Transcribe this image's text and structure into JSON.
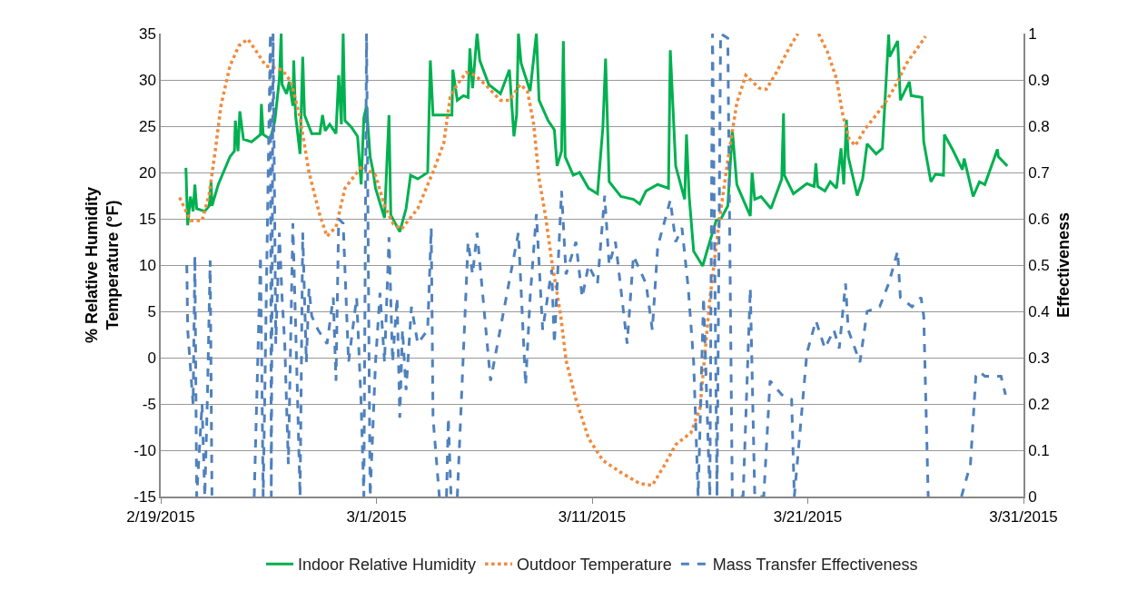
{
  "chart_data": {
    "type": "line",
    "ylabel": "% Relative Humidity\nTemperature (°F)",
    "y2label": "Effectiveness",
    "xlim": [
      "2015-02-19",
      "2015-03-31"
    ],
    "xticks": [
      {
        "value": "2015-02-19",
        "label": "2/19/2015"
      },
      {
        "value": "2015-03-01",
        "label": "3/1/2015"
      },
      {
        "value": "2015-03-11",
        "label": "3/11/2015"
      },
      {
        "value": "2015-03-21",
        "label": "3/21/2015"
      },
      {
        "value": "2015-03-31",
        "label": "3/31/2015"
      }
    ],
    "ylim": [
      -15,
      35
    ],
    "yticks": [
      -15,
      -10,
      -5,
      0,
      5,
      10,
      15,
      20,
      25,
      30,
      35
    ],
    "y2lim": [
      0,
      1
    ],
    "y2ticks": [
      0,
      0.1,
      0.2,
      0.3,
      0.4,
      0.5,
      0.6,
      0.7,
      0.8,
      0.9,
      1
    ],
    "grid": "y",
    "legend": "bottom",
    "series": [
      {
        "name": "Indoor Relative Humidity",
        "color": "#00b050",
        "line_style": "solid",
        "x": [
          "2015-02-20T04:00",
          "2015-02-20T06:00",
          "2015-02-20T09:00",
          "2015-02-20T12:00",
          "2015-02-20T14:00",
          "2015-02-20T16:00",
          "2015-02-21T01:00",
          "2015-02-21T06:00",
          "2015-02-21T08:00",
          "2015-02-21T09:00",
          "2015-02-21T16:00",
          "2015-02-22T05:00",
          "2015-02-22T10:00",
          "2015-02-22T11:00",
          "2015-02-22T14:00",
          "2015-02-22T16:00",
          "2015-02-22T20:00",
          "2015-02-23T05:00",
          "2015-02-23T15:00",
          "2015-02-23T16:00",
          "2015-02-23T18:00",
          "2015-02-24T02:00",
          "2015-02-24T07:00",
          "2015-02-24T12:00",
          "2015-02-24T14:00",
          "2015-02-24T15:00",
          "2015-02-24T20:00",
          "2015-02-24T23:00",
          "2015-02-25T03:00",
          "2015-02-25T04:00",
          "2015-02-25T06:00",
          "2015-02-25T11:00",
          "2015-02-25T14:00",
          "2015-02-25T16:00",
          "2015-02-26T00:00",
          "2015-02-26T09:00",
          "2015-02-26T12:00",
          "2015-02-26T15:00",
          "2015-02-26T20:00",
          "2015-02-27T03:00",
          "2015-02-27T06:00",
          "2015-02-27T09:00",
          "2015-02-27T11:00",
          "2015-02-27T13:00",
          "2015-02-27T20:00",
          "2015-02-28T03:00",
          "2015-02-28T07:00",
          "2015-02-28T10:00",
          "2015-02-28T13:00",
          "2015-02-28T17:00",
          "2015-02-28T20:00",
          "2015-02-28T23:00",
          "2015-03-01T09:00",
          "2015-03-01T14:00",
          "2015-03-01T16:00",
          "2015-03-02T02:00",
          "2015-03-02T09:00",
          "2015-03-02T14:00",
          "2015-03-02T22:00",
          "2015-03-03T09:00",
          "2015-03-03T12:00",
          "2015-03-03T15:00",
          "2015-03-04T02:00",
          "2015-03-04T12:00",
          "2015-03-04T13:00",
          "2015-03-04T18:00",
          "2015-03-05T01:00",
          "2015-03-05T06:00",
          "2015-03-05T08:00",
          "2015-03-05T11:00",
          "2015-03-05T16:00",
          "2015-03-05T19:00",
          "2015-03-06T05:00",
          "2015-03-06T18:00",
          "2015-03-07T04:00",
          "2015-03-07T09:00",
          "2015-03-07T12:00",
          "2015-03-07T14:00",
          "2015-03-07T17:00",
          "2015-03-08T03:00",
          "2015-03-08T10:00",
          "2015-03-08T13:00",
          "2015-03-08T23:00",
          "2015-03-09T06:00",
          "2015-03-09T09:00",
          "2015-03-09T14:00",
          "2015-03-09T16:00",
          "2015-03-09T18:00",
          "2015-03-10T03:00",
          "2015-03-10T10:00",
          "2015-03-10T20:00",
          "2015-03-11T06:00",
          "2015-03-11T12:00",
          "2015-03-11T15:00",
          "2015-03-11T19:00",
          "2015-03-12T08:00",
          "2015-03-12T22:00",
          "2015-03-13T05:00",
          "2015-03-13T12:00",
          "2015-03-14T01:00",
          "2015-03-14T13:00",
          "2015-03-14T15:00",
          "2015-03-14T21:00",
          "2015-03-15T07:00",
          "2015-03-15T09:00",
          "2015-03-15T12:00",
          "2015-03-15T17:00",
          "2015-03-16T03:00",
          "2015-03-16T09:00",
          "2015-03-16T18:00",
          "2015-03-17T00:00",
          "2015-03-17T07:00",
          "2015-03-17T12:00",
          "2015-03-17T17:00",
          "2015-03-17T20:00",
          "2015-03-18T08:00",
          "2015-03-18T10:00",
          "2015-03-18T13:00",
          "2015-03-18T20:00",
          "2015-03-19T07:00",
          "2015-03-19T19:00",
          "2015-03-19T21:00",
          "2015-03-19T22:00",
          "2015-03-20T08:00",
          "2015-03-20T23:00",
          "2015-03-21T07:00",
          "2015-03-21T09:00",
          "2015-03-21T11:00",
          "2015-03-21T19:00",
          "2015-03-22T01:00",
          "2015-03-22T08:00",
          "2015-03-22T13:00",
          "2015-03-22T16:00",
          "2015-03-22T19:00",
          "2015-03-22T21:00",
          "2015-03-23T07:00",
          "2015-03-23T13:00",
          "2015-03-23T18:00",
          "2015-03-24T04:00",
          "2015-03-24T11:00",
          "2015-03-24T18:00",
          "2015-03-24T19:00",
          "2015-03-25T04:00",
          "2015-03-25T07:00",
          "2015-03-25T17:00",
          "2015-03-25T19:00",
          "2015-03-26T07:00",
          "2015-03-26T09:00",
          "2015-03-26T17:00",
          "2015-03-26T22:00",
          "2015-03-27T07:00",
          "2015-03-27T08:00",
          "2015-03-27T17:00",
          "2015-03-28T04:00",
          "2015-03-28T06:00",
          "2015-03-28T16:00",
          "2015-03-28T23:00",
          "2015-03-29T05:00",
          "2015-03-29T19:00",
          "2015-03-29T20:00",
          "2015-03-30T06:00"
        ],
        "values": [
          20.5,
          14.3,
          17.4,
          15.8,
          18.7,
          16.1,
          15.8,
          16.4,
          19.0,
          16.4,
          18.7,
          21.7,
          22.3,
          25.6,
          22.3,
          26.6,
          23.6,
          23.3,
          24.1,
          27.4,
          24.1,
          23.6,
          25.6,
          30.1,
          35,
          29.5,
          28.5,
          29.8,
          27.2,
          32.1,
          26.2,
          22.0,
          32.5,
          26.2,
          24.2,
          24.2,
          26.2,
          24.5,
          25.2,
          24.2,
          30.5,
          25.2,
          35,
          25.6,
          24.9,
          23.9,
          18.7,
          25.9,
          27.2,
          21.7,
          20.3,
          18.3,
          15.1,
          26.2,
          15.4,
          13.6,
          16.1,
          19.7,
          19.3,
          20.0,
          32.1,
          26.2,
          26.2,
          26.2,
          31.1,
          27.8,
          28.3,
          28.1,
          33.4,
          29.1,
          35,
          32.1,
          29.5,
          28.5,
          31.1,
          23.9,
          26.2,
          35,
          31.8,
          28.8,
          35,
          27.8,
          25.6,
          24.6,
          20.7,
          22.3,
          34.2,
          21.7,
          19.7,
          20.0,
          18.3,
          17.7,
          24.9,
          32.3,
          19.0,
          17.4,
          17.1,
          16.6,
          18.0,
          18.7,
          18.3,
          33.2,
          20.7,
          17.1,
          24.1,
          17.4,
          11.5,
          9.9,
          11.9,
          14.8,
          15.1,
          16.4,
          24.6,
          18.7,
          18.0,
          15.3,
          20.0,
          17.1,
          17.4,
          16.1,
          19.3,
          26.4,
          19.7,
          17.7,
          18.8,
          18.5,
          21.0,
          18.5,
          18.0,
          19.0,
          18.3,
          22.6,
          18.7,
          25.7,
          21.7,
          17.5,
          19.3,
          23.1,
          22.0,
          22.6,
          34.9,
          32.5,
          34.2,
          27.8,
          29.8,
          28.3,
          28.1,
          23.3,
          19.0,
          19.8,
          19.7,
          24.1,
          22.5,
          20.3,
          21.5,
          17.4,
          19.0,
          18.7,
          22.5,
          21.7,
          20.7
        ]
      },
      {
        "name": "Outdoor Temperature",
        "color": "#f08a3c",
        "line_style": "dotted",
        "x": [
          "2015-02-19T21:00",
          "2015-02-20T09:00",
          "2015-02-20T22:00",
          "2015-02-21T06:00",
          "2015-02-21T13:00",
          "2015-02-21T19:00",
          "2015-02-22T05:00",
          "2015-02-22T15:00",
          "2015-02-23T01:00",
          "2015-02-23T11:00",
          "2015-02-23T21:00",
          "2015-02-24T15:00",
          "2015-02-25T01:00",
          "2015-02-25T11:00",
          "2015-02-25T21:00",
          "2015-02-26T09:00",
          "2015-02-26T17:00",
          "2015-02-27T03:00",
          "2015-02-27T13:00",
          "2015-02-28T08:00",
          "2015-02-28T23:00",
          "2015-03-01T09:00",
          "2015-03-01T19:00",
          "2015-03-02T04:00",
          "2015-03-02T22:00",
          "2015-03-03T16:00",
          "2015-03-04T03:00",
          "2015-03-04T10:00",
          "2015-03-04T18:00",
          "2015-03-05T04:00",
          "2015-03-05T14:00",
          "2015-03-06T01:00",
          "2015-03-06T18:00",
          "2015-03-07T04:00",
          "2015-03-07T16:00",
          "2015-03-08T00:00",
          "2015-03-08T07:00",
          "2015-03-08T13:00",
          "2015-03-08T20:00",
          "2015-03-09T03:00",
          "2015-03-09T13:00",
          "2015-03-09T19:00",
          "2015-03-10T06:00",
          "2015-03-10T20:00",
          "2015-03-11T12:00",
          "2015-03-12T08:00",
          "2015-03-13T05:00",
          "2015-03-13T19:00",
          "2015-03-14T08:00",
          "2015-03-14T21:00",
          "2015-03-15T14:00",
          "2015-03-16T00:00",
          "2015-03-16T11:00",
          "2015-03-16T21:00",
          "2015-03-17T07:00",
          "2015-03-17T17:00",
          "2015-03-18T03:00",
          "2015-03-18T18:00",
          "2015-03-19T02:00",
          "2015-03-19T13:00",
          "2015-03-20T03:00",
          "2015-03-20T13:00",
          "2015-03-20T22:00",
          "2015-03-21T12:00",
          "2015-03-21T22:00",
          "2015-03-22T08:00",
          "2015-03-22T15:00",
          "2015-03-22T22:00",
          "2015-03-23T05:00",
          "2015-03-23T15:00",
          "2015-03-24T04:00",
          "2015-03-24T14:00",
          "2015-03-25T00:00",
          "2015-03-25T14:00",
          "2015-03-26T04:00",
          "2015-03-26T11:00"
        ],
        "values": [
          17.3,
          14.8,
          14.8,
          17.7,
          22.6,
          27.2,
          31.5,
          33.7,
          34.4,
          33.0,
          31.5,
          31.1,
          29.8,
          25.9,
          20.0,
          15.4,
          13.1,
          14.1,
          18.3,
          20.7,
          19.7,
          16.4,
          14.4,
          13.9,
          16.1,
          20.3,
          23.2,
          28.1,
          29.5,
          30.8,
          30.5,
          29.5,
          27.8,
          27.8,
          29.5,
          28.8,
          25.2,
          19.3,
          15.4,
          10.5,
          4.6,
          -0.3,
          -4.5,
          -8.7,
          -11.1,
          -12.4,
          -13.6,
          -13.8,
          -11.7,
          -9.4,
          -8.1,
          -5.5,
          6.3,
          14.4,
          21.3,
          27.5,
          30.5,
          29.1,
          29.0,
          30.8,
          33.4,
          35,
          null,
          35,
          33.0,
          30.1,
          26.2,
          23.6,
          22.9,
          24.6,
          26.2,
          27.5,
          29.1,
          31.8,
          33.7,
          34.7
        ]
      },
      {
        "name": "Mass Transfer Effectiveness",
        "color": "#4f81bd",
        "line_style": "dashed",
        "axis": "y2",
        "x": [
          "2015-02-20T05:00",
          "2015-02-20T06:00",
          "2015-02-20T12:00",
          "2015-02-20T14:00",
          "2015-02-20T16:00",
          "2015-02-20T22:00",
          "2015-02-21T01:00",
          "2015-02-21T04:00",
          "2015-02-21T07:00",
          "2015-02-21T09:00",
          "2015-02-21T20:00",
          "2015-02-23T08:00",
          "2015-02-23T15:00",
          "2015-02-23T18:00",
          "2015-02-24T02:00",
          "2015-02-24T03:00",
          "2015-02-24T05:00",
          "2015-02-24T07:00",
          "2015-02-24T08:00",
          "2015-02-24T12:00",
          "2015-02-24T15:00",
          "2015-02-24T18:00",
          "2015-02-24T22:00",
          "2015-02-25T03:00",
          "2015-02-25T08:00",
          "2015-02-25T11:00",
          "2015-02-25T14:00",
          "2015-02-25T18:00",
          "2015-02-25T21:00",
          "2015-02-26T00:00",
          "2015-02-26T07:00",
          "2015-02-26T17:00",
          "2015-02-27T00:00",
          "2015-02-27T03:00",
          "2015-02-27T06:00",
          "2015-02-27T11:00",
          "2015-02-27T17:00",
          "2015-02-28T02:00",
          "2015-02-28T07:00",
          "2015-02-28T10:00",
          "2015-02-28T13:00",
          "2015-02-28T17:00",
          "2015-02-28T23:00",
          "2015-03-01T04:00",
          "2015-03-01T09:00",
          "2015-03-01T14:00",
          "2015-03-01T18:00",
          "2015-03-01T23:00",
          "2015-03-02T02:00",
          "2015-03-02T05:00",
          "2015-03-02T09:00",
          "2015-03-02T15:00",
          "2015-03-02T22:00",
          "2015-03-03T09:00",
          "2015-03-03T13:00",
          "2015-03-03T15:00",
          "2015-03-03T22:00",
          "2015-03-04T02:00",
          "2015-03-04T06:00",
          "2015-03-04T08:00",
          "2015-03-04T11:00",
          "2015-03-04T18:00",
          "2015-03-05T06:00",
          "2015-03-05T11:00",
          "2015-03-05T16:00",
          "2015-03-06T07:00",
          "2015-03-07T14:00",
          "2015-03-07T22:00",
          "2015-03-08T03:00",
          "2015-03-08T10:00",
          "2015-03-08T17:00",
          "2015-03-09T03:00",
          "2015-03-09T06:00",
          "2015-03-09T14:00",
          "2015-03-09T19:00",
          "2015-03-10T06:00",
          "2015-03-10T13:00",
          "2015-03-10T20:00",
          "2015-03-11T06:00",
          "2015-03-11T14:00",
          "2015-03-11T19:00",
          "2015-03-12T02:00",
          "2015-03-12T15:00",
          "2015-03-12T22:00",
          "2015-03-13T12:00",
          "2015-03-13T19:00",
          "2015-03-14T01:00",
          "2015-03-14T15:00",
          "2015-03-14T21:00",
          "2015-03-15T04:00",
          "2015-03-15T11:00",
          "2015-03-15T17:00",
          "2015-03-15T22:00",
          "2015-03-16T04:00",
          "2015-03-16T11:00",
          "2015-03-16T14:00",
          "2015-03-16T19:00",
          "2015-03-16T23:00",
          "2015-03-17T07:00",
          "2015-03-17T12:00",
          "2015-03-18T00:00",
          "2015-03-18T08:00",
          "2015-03-18T13:00",
          "2015-03-18T23:00",
          "2015-03-19T06:00",
          "2015-03-19T19:00",
          "2015-03-20T06:00",
          "2015-03-20T09:00",
          "2015-03-20T23:00",
          "2015-03-21T09:00",
          "2015-03-21T19:00",
          "2015-03-22T05:00",
          "2015-03-22T11:00",
          "2015-03-22T18:00",
          "2015-03-22T21:00",
          "2015-03-23T10:00",
          "2015-03-23T18:00",
          "2015-03-24T08:00",
          "2015-03-24T18:00",
          "2015-03-25T04:00",
          "2015-03-25T07:00",
          "2015-03-25T20:00",
          "2015-03-26T06:00",
          "2015-03-26T09:00",
          "2015-03-26T14:00",
          "2015-03-27T00:00",
          "2015-03-28T03:00",
          "2015-03-28T13:00",
          "2015-03-28T19:00",
          "2015-03-28T23:00",
          "2015-03-29T05:00",
          "2015-03-29T23:00",
          "2015-03-30T04:00"
        ],
        "values": [
          0.5,
          0.36,
          0.2,
          0.52,
          0,
          0.2,
          0,
          0.22,
          0.51,
          0,
          null,
          0,
          0.52,
          0,
          1,
          0,
          1,
          0.56,
          0.33,
          0.57,
          0.43,
          0.33,
          0.07,
          0.59,
          0.23,
          0,
          0.57,
          0.29,
          0.45,
          0.39,
          0.36,
          0.33,
          0.43,
          0.25,
          0.6,
          0.59,
          0.29,
          0.43,
          0.2,
          0,
          1,
          0,
          0.29,
          0.44,
          0.29,
          0.56,
          0.29,
          0.43,
          0.17,
          0.36,
          0.23,
          0.41,
          0.33,
          0.36,
          0.58,
          0.17,
          0,
          null,
          0,
          0.17,
          0,
          0,
          0.55,
          0.48,
          0.57,
          0.25,
          0.57,
          0.24,
          0.43,
          0.61,
          0.36,
          0.49,
          0.33,
          0.66,
          0.48,
          0.55,
          0.43,
          0.5,
          0.46,
          0.65,
          0.5,
          0.55,
          0.33,
          0.52,
          0.46,
          0.36,
          0.54,
          0.64,
          0.55,
          0.58,
          0.45,
          0.29,
          0,
          0.43,
          0,
          1,
          0,
          1,
          0.99,
          0,
          0,
          0.45,
          0,
          0,
          0.25,
          0.22,
          0.21,
          0,
          0.31,
          0.38,
          0.32,
          0.36,
          0.32,
          0.46,
          0.36,
          0.29,
          0.4,
          0.41,
          0.46,
          0.53,
          0.43,
          0.41,
          0.43,
          0.39,
          0,
          null,
          0,
          0.07,
          0.26,
          0.27,
          0.26,
          0.26,
          0.22
        ]
      }
    ]
  }
}
